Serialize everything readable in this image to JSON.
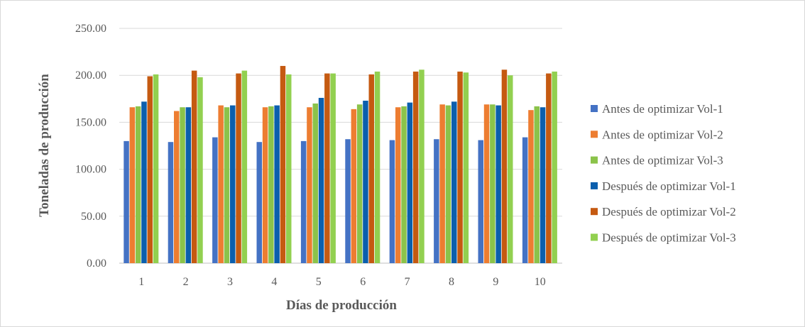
{
  "chart_data": {
    "type": "bar",
    "title": "",
    "xlabel": "Días de producción",
    "ylabel": "Toneladas de producción",
    "ylim": [
      0,
      250
    ],
    "yticks": [
      "0.00",
      "50.00",
      "100.00",
      "150.00",
      "200.00",
      "250.00"
    ],
    "categories": [
      "1",
      "2",
      "3",
      "4",
      "5",
      "6",
      "7",
      "8",
      "9",
      "10"
    ],
    "grid": true,
    "legend_position": "right",
    "series": [
      {
        "name": "Antes de optimizar Vol-1",
        "color": "#4472c4",
        "values": [
          130,
          129,
          134,
          129,
          130,
          132,
          131,
          132,
          131,
          134
        ]
      },
      {
        "name": "Antes de optimizar Vol-2",
        "color": "#ed7d31",
        "values": [
          166,
          162,
          168,
          166,
          166,
          164,
          166,
          169,
          169,
          163
        ]
      },
      {
        "name": "Antes de optimizar Vol-3",
        "color": "#8bc34a",
        "values": [
          167,
          166,
          166,
          167,
          170,
          169,
          167,
          168,
          169,
          167
        ]
      },
      {
        "name": "Después de optimizar Vol-1",
        "color": "#0b5fad",
        "values": [
          172,
          166,
          168,
          168,
          176,
          173,
          171,
          172,
          168,
          166
        ]
      },
      {
        "name": "Después de optimizar Vol-2",
        "color": "#c55a11",
        "values": [
          199,
          205,
          202,
          210,
          202,
          201,
          204,
          204,
          206,
          202
        ]
      },
      {
        "name": "Después de optimizar Vol-3",
        "color": "#92d050",
        "values": [
          201,
          198,
          205,
          201,
          202,
          204,
          206,
          203,
          200,
          204
        ]
      }
    ]
  }
}
